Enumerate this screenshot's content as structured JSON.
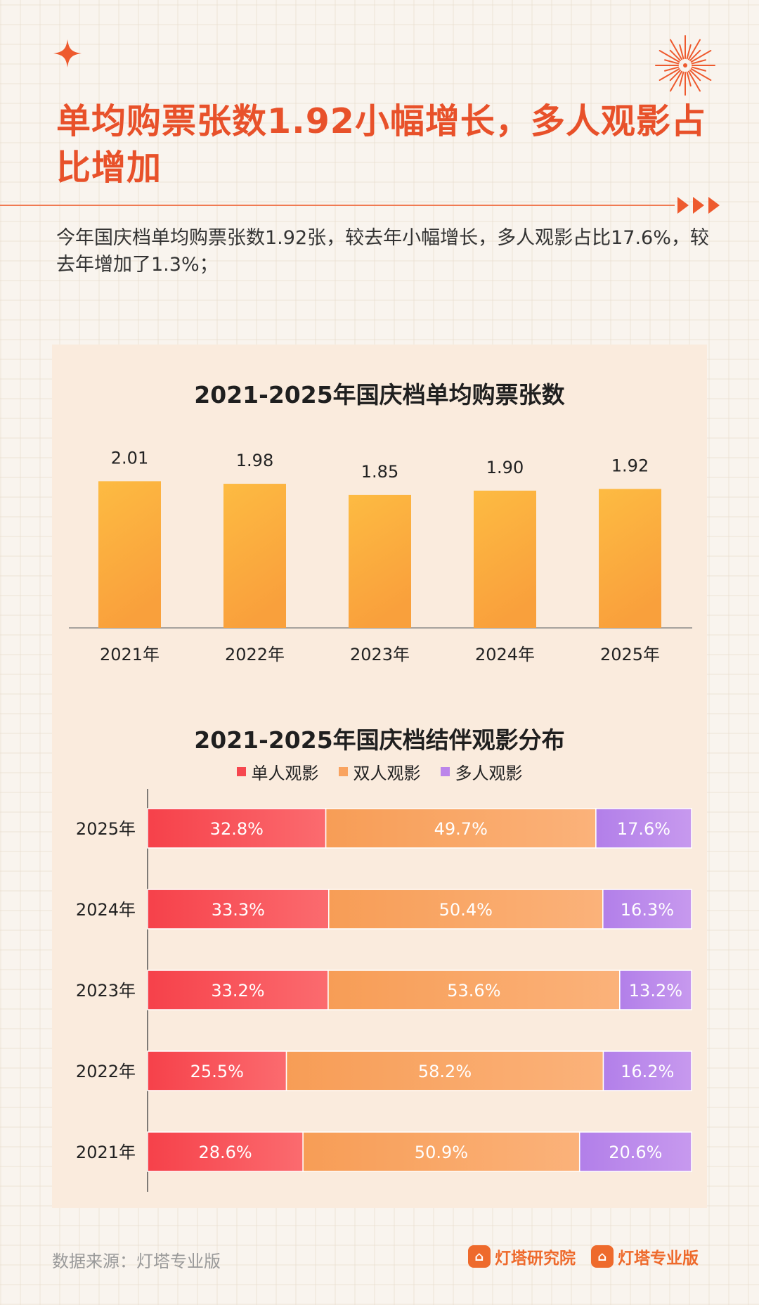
{
  "header": {
    "title": "单均购票张数1.92小幅增长，多人观影占比增加",
    "subtitle": "今年国庆档单均购票张数1.92张，较去年小幅增长，多人观影占比17.6%，较去年增加了1.3%；"
  },
  "colors": {
    "accent": "#e8512a",
    "bar_top": "#fdbb42",
    "bar_bottom": "#f9a03c",
    "single": "#f6474f",
    "double": "#f9a35f",
    "multi": "#bb85ea"
  },
  "chart_data": [
    {
      "type": "bar",
      "title": "2021-2025年国庆档单均购票张数",
      "categories": [
        "2021年",
        "2022年",
        "2023年",
        "2024年",
        "2025年"
      ],
      "values": [
        2.01,
        1.98,
        1.85,
        1.9,
        1.92
      ],
      "value_labels": [
        "2.01",
        "1.98",
        "1.85",
        "1.90",
        "1.92"
      ]
    },
    {
      "type": "bar",
      "orientation": "horizontal",
      "stacked": true,
      "title": "2021-2025年国庆档结伴观影分布",
      "legend_position": "top",
      "categories": [
        "2025年",
        "2024年",
        "2023年",
        "2022年",
        "2021年"
      ],
      "series": [
        {
          "name": "单人观影",
          "values": [
            32.8,
            33.3,
            33.2,
            25.5,
            28.6
          ],
          "labels": [
            "32.8%",
            "33.3%",
            "33.2%",
            "25.5%",
            "28.6%"
          ]
        },
        {
          "name": "双人观影",
          "values": [
            49.7,
            50.4,
            53.6,
            58.2,
            50.9
          ],
          "labels": [
            "49.7%",
            "50.4%",
            "53.6%",
            "58.2%",
            "50.9%"
          ]
        },
        {
          "name": "多人观影",
          "values": [
            17.6,
            16.3,
            13.2,
            16.2,
            20.6
          ],
          "labels": [
            "17.6%",
            "16.3%",
            "13.2%",
            "16.2%",
            "20.6%"
          ]
        }
      ]
    }
  ],
  "footer": {
    "source": "数据来源：灯塔专业版",
    "logo_1": "灯塔研究院",
    "logo_2": "灯塔专业版"
  }
}
